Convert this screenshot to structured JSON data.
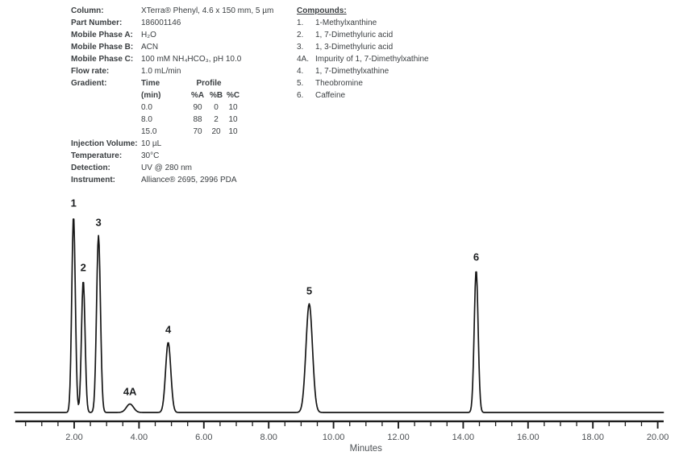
{
  "method": {
    "rows_top": [
      {
        "label": "Column:",
        "value": "XTerra® Phenyl, 4.6 x 150 mm, 5 µm"
      },
      {
        "label": "Part Number:",
        "value": "186001146"
      },
      {
        "label": "Mobile Phase A:",
        "value": "H₂O"
      },
      {
        "label": "Mobile Phase B:",
        "value": "ACN"
      },
      {
        "label": "Mobile Phase C:",
        "value": "100 mM NH₄HCO₃, pH 10.0"
      },
      {
        "label": "Flow rate:",
        "value": "1.0 mL/min"
      }
    ],
    "gradient": {
      "label": "Gradient:",
      "col_headers": {
        "time": "Time",
        "profile": "Profile"
      },
      "sub_headers": {
        "time": "(min)",
        "a": "%A",
        "b": "%B",
        "c": "%C"
      },
      "rows": [
        {
          "time": "0.0",
          "a": "90",
          "b": "0",
          "c": "10"
        },
        {
          "time": "8.0",
          "a": "88",
          "b": "2",
          "c": "10"
        },
        {
          "time": "15.0",
          "a": "70",
          "b": "20",
          "c": "10"
        }
      ]
    },
    "rows_bottom": [
      {
        "label": "Injection Volume:",
        "value": "10 µL"
      },
      {
        "label": "Temperature:",
        "value": "30°C"
      },
      {
        "label": "Detection:",
        "value": "UV @ 280 nm"
      },
      {
        "label": "Instrument:",
        "value": "Alliance® 2695, 2996 PDA"
      }
    ]
  },
  "compounds": {
    "header": "Compounds:",
    "items": [
      {
        "num": "1.",
        "name": "1-Methylxanthine"
      },
      {
        "num": "2.",
        "name": "1, 7-Dimethyluric acid"
      },
      {
        "num": "3.",
        "name": "1, 3-Dimethyluric acid"
      },
      {
        "num": "4A.",
        "name": "Impurity of 1, 7-Dimethylxathine"
      },
      {
        "num": "4.",
        "name": "1, 7-Dimethylxathine"
      },
      {
        "num": "5.",
        "name": "Theobromine"
      },
      {
        "num": "6.",
        "name": "Caffeine"
      }
    ]
  },
  "chart_data": {
    "type": "line",
    "title": "",
    "xlabel": "Minutes",
    "x_axis": {
      "unit": "min",
      "range": [
        0.15,
        20.2
      ],
      "label_positions": [
        2,
        4,
        6,
        8,
        10,
        12,
        14,
        16,
        18,
        20
      ],
      "tick_labels": [
        "2.00",
        "4.00",
        "6.00",
        "8.00",
        "10.00",
        "12.00",
        "14.00",
        "16.00",
        "18.00",
        "20.00"
      ],
      "minor_tick_interval_min": 0.5
    },
    "y_axis": {
      "visible": false,
      "height_scale": "relative to tallest peak (peak 1 = 1.00)"
    },
    "grid": false,
    "legend": false,
    "line_color": "#161616",
    "peaks": [
      {
        "label": "1",
        "compound": "1-Methylxanthine",
        "retention_time_min": 1.98,
        "rel_height": 1.0,
        "sigma_min": 0.055
      },
      {
        "label": "2",
        "compound": "1, 7-Dimethyluric acid",
        "retention_time_min": 2.28,
        "rel_height": 0.672,
        "sigma_min": 0.055
      },
      {
        "label": "3",
        "compound": "1, 3-Dimethyluric acid",
        "retention_time_min": 2.75,
        "rel_height": 0.9,
        "sigma_min": 0.06
      },
      {
        "label": "4A",
        "compound": "Impurity of 1, 7-Dimethylxathine",
        "retention_time_min": 3.72,
        "rel_height": 0.043,
        "sigma_min": 0.11
      },
      {
        "label": "4",
        "compound": "1, 7-Dimethylxathine",
        "retention_time_min": 4.9,
        "rel_height": 0.357,
        "sigma_min": 0.08
      },
      {
        "label": "5",
        "compound": "Theobromine",
        "retention_time_min": 9.25,
        "rel_height": 0.553,
        "sigma_min": 0.1
      },
      {
        "label": "6",
        "compound": "Caffeine",
        "retention_time_min": 14.4,
        "rel_height": 0.725,
        "sigma_min": 0.06
      }
    ]
  },
  "colors": {
    "background": "#ffffff",
    "text": "#3a3e41",
    "trace": "#161616",
    "axis": "#1c1c1c",
    "tick_label": "#4c5054",
    "peak_label": "#1b1d1f"
  }
}
